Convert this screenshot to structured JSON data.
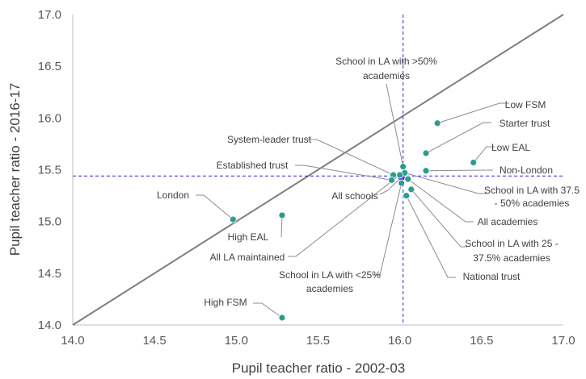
{
  "chart_data": {
    "type": "scatter",
    "title": "",
    "xlabel": "Pupil teacher ratio - 2002-03",
    "ylabel": "Pupil teacher ratio  - 2016-17",
    "xlim": [
      14.0,
      17.0
    ],
    "ylim": [
      14.0,
      17.0
    ],
    "x_ticks": [
      "14.0",
      "14.5",
      "15.0",
      "15.5",
      "16.0",
      "16.5",
      "17.0"
    ],
    "y_ticks": [
      "14.0",
      "14.5",
      "15.0",
      "15.5",
      "16.0",
      "16.5",
      "17.0"
    ],
    "reference_lines": {
      "diagonal": true,
      "x_value": 16.02,
      "y_value": 15.44
    },
    "grid": false,
    "colors": {
      "point": "#2a9d8f",
      "highlight": "#5b3cf0",
      "diagonal": "#7f7f7f",
      "crosshair": "#2a2ad6"
    },
    "points": [
      {
        "label": "Low FSM",
        "x": 16.23,
        "y": 15.95
      },
      {
        "label": "Starter trust",
        "x": 16.16,
        "y": 15.66
      },
      {
        "label": "Low EAL",
        "x": 16.45,
        "y": 15.57
      },
      {
        "label": "Non-London",
        "x": 16.16,
        "y": 15.49
      },
      {
        "label": "School in LA with >50% academies",
        "x": 16.02,
        "y": 15.53
      },
      {
        "label": "System-leader trust",
        "x": 15.96,
        "y": 15.45
      },
      {
        "label": "Established trust",
        "x": 15.95,
        "y": 15.4
      },
      {
        "label": "All schools",
        "x": 16.01,
        "y": 15.43
      },
      {
        "label": "School in LA with 37.5 - 50% academies",
        "x": 16.03,
        "y": 15.47
      },
      {
        "label": "All academies",
        "x": 16.05,
        "y": 15.41
      },
      {
        "label": "School in LA with 25 - 37.5% academies",
        "x": 16.07,
        "y": 15.31
      },
      {
        "label": "National trust",
        "x": 16.04,
        "y": 15.25
      },
      {
        "label": "School in LA with <25% academies",
        "x": 16.01,
        "y": 15.37
      },
      {
        "label": "All LA maintained",
        "x": 16.0,
        "y": 15.45
      },
      {
        "label": "London",
        "x": 14.98,
        "y": 15.02
      },
      {
        "label": "High EAL",
        "x": 15.28,
        "y": 15.06
      },
      {
        "label": "High FSM",
        "x": 15.28,
        "y": 14.07
      }
    ]
  }
}
